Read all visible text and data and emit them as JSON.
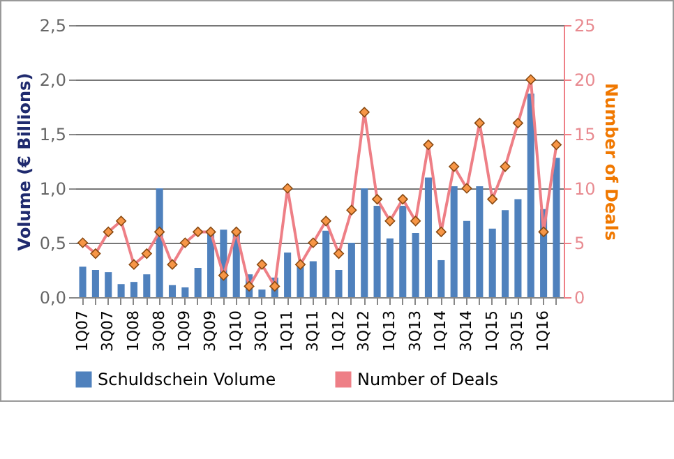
{
  "chart_data": {
    "type": "bar",
    "categories": [
      "1Q07",
      null,
      "3Q07",
      null,
      "1Q08",
      null,
      "3Q08",
      null,
      "1Q09",
      null,
      "3Q09",
      null,
      "1Q10",
      null,
      "3Q10",
      null,
      "1Q11",
      null,
      "3Q11",
      null,
      "1Q12",
      null,
      "3Q12",
      null,
      "1Q13",
      null,
      "3Q13",
      null,
      "1Q14",
      null,
      "3Q14",
      null,
      "1Q15",
      null,
      "3Q15",
      null,
      "1Q16",
      null
    ],
    "series": [
      {
        "name": "Schuldschein Volume",
        "color": "#4f81bd",
        "values": [
          0.28,
          0.25,
          0.23,
          0.12,
          0.14,
          0.21,
          1.0,
          0.11,
          0.09,
          0.27,
          0.6,
          0.62,
          0.58,
          0.21,
          0.07,
          0.18,
          0.41,
          0.29,
          0.33,
          0.61,
          0.25,
          0.5,
          1.0,
          0.84,
          0.54,
          0.84,
          0.59,
          1.1,
          0.34,
          1.02,
          0.7,
          1.02,
          0.63,
          0.8,
          0.9,
          1.87,
          0.81,
          1.28
        ]
      },
      {
        "name": "Number of Deals",
        "type": "line",
        "axis": "y2",
        "color": "#ee7f86",
        "marker": "diamond",
        "line_style": "solid",
        "values": [
          5,
          4,
          6,
          7,
          3,
          4,
          6,
          3,
          5,
          6,
          6,
          2,
          6,
          1,
          3,
          1,
          10,
          3,
          5,
          7,
          4,
          8,
          17,
          9,
          7,
          9,
          7,
          14,
          6,
          12,
          10,
          16,
          9,
          12,
          16,
          20,
          6,
          14
        ]
      }
    ],
    "ylabel": "Volume (€ Billions)",
    "y2label": "Number of Deals",
    "ylim": [
      0,
      2.5
    ],
    "yticks": [
      {
        "value": 0,
        "label": "0,0"
      },
      {
        "value": 0.5,
        "label": "0,5"
      },
      {
        "value": 1,
        "label": "1,0"
      },
      {
        "value": 1.5,
        "label": "1,5"
      },
      {
        "value": 2,
        "label": "2,0"
      },
      {
        "value": 2.5,
        "label": "2,5"
      }
    ],
    "y2lim": [
      0,
      25
    ],
    "y2ticks": [
      0,
      5,
      10,
      15,
      20,
      25
    ],
    "grid": "y",
    "legend": "bottom"
  }
}
